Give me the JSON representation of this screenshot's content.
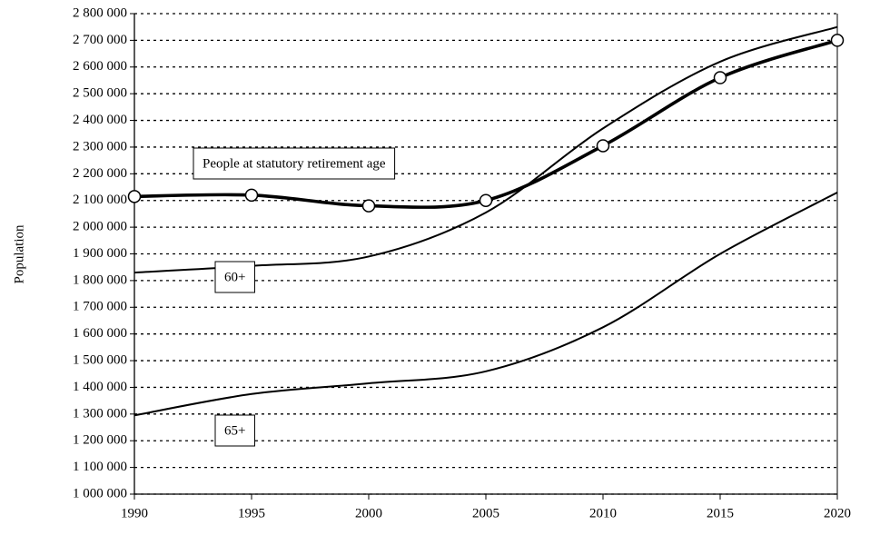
{
  "chart_data": {
    "type": "line",
    "y_label": "Population",
    "x": [
      1990,
      1995,
      2000,
      2005,
      2010,
      2015,
      2020
    ],
    "xlim": [
      1990,
      2020
    ],
    "xticks": [
      1990,
      1995,
      2000,
      2005,
      2010,
      2015,
      2020
    ],
    "ylim": [
      1000000,
      2800000
    ],
    "yticks": [
      {
        "value": 1000000,
        "label": "1 000 000"
      },
      {
        "value": 1100000,
        "label": "1 100 000"
      },
      {
        "value": 1200000,
        "label": "1 200 000"
      },
      {
        "value": 1300000,
        "label": "1 300 000"
      },
      {
        "value": 1400000,
        "label": "1 400 000"
      },
      {
        "value": 1500000,
        "label": "1 500 000"
      },
      {
        "value": 1600000,
        "label": "1 600 000"
      },
      {
        "value": 1700000,
        "label": "1 700 000"
      },
      {
        "value": 1800000,
        "label": "1 800 000"
      },
      {
        "value": 1900000,
        "label": "1 900 000"
      },
      {
        "value": 2000000,
        "label": "2 000 000"
      },
      {
        "value": 2100000,
        "label": "2 100 000"
      },
      {
        "value": 2200000,
        "label": "2 200 000"
      },
      {
        "value": 2300000,
        "label": "2 300 000"
      },
      {
        "value": 2400000,
        "label": "2 400 000"
      },
      {
        "value": 2500000,
        "label": "2 500 000"
      },
      {
        "value": 2600000,
        "label": "2 600 000"
      },
      {
        "value": 2700000,
        "label": "2 700 000"
      },
      {
        "value": 2800000,
        "label": "2 800 000"
      }
    ],
    "grid": true,
    "series": [
      {
        "name": "People at statutory retirement age",
        "color": "#000000",
        "markers": true,
        "values": [
          2115000,
          2120000,
          2080000,
          2100000,
          2305000,
          2560000,
          2700000
        ]
      },
      {
        "name": "60+",
        "color": "#000000",
        "markers": false,
        "values": [
          1830000,
          1855000,
          1890000,
          2055000,
          2370000,
          2620000,
          2750000
        ]
      },
      {
        "name": "65+",
        "color": "#000000",
        "markers": false,
        "values": [
          1295000,
          1375000,
          1415000,
          1460000,
          1625000,
          1900000,
          2130000
        ]
      }
    ]
  }
}
